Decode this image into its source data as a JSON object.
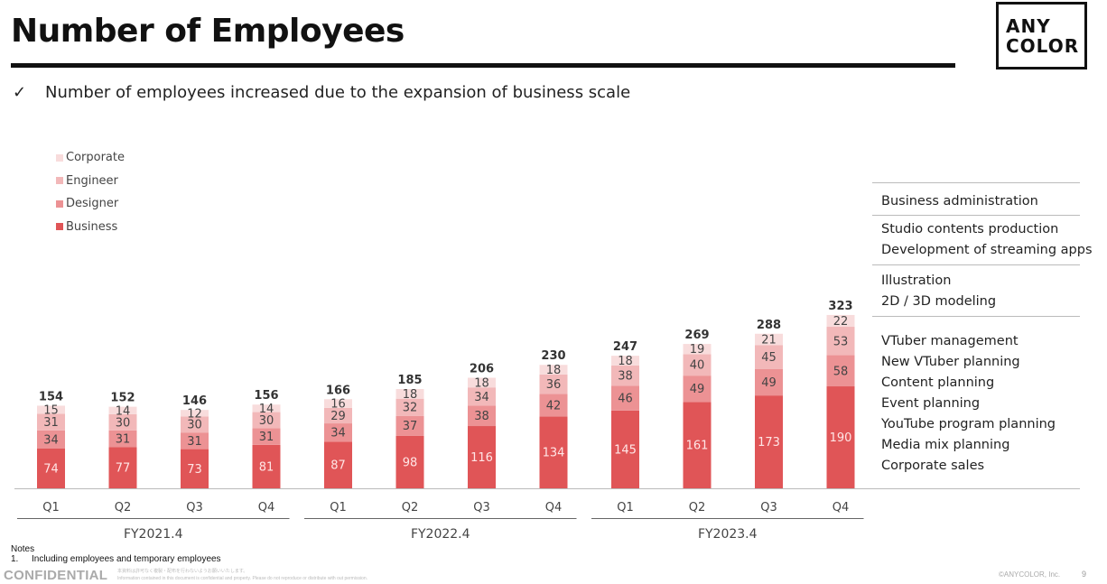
{
  "header": {
    "title": "Number of Employees",
    "logo_line1": "ANY",
    "logo_line2": "COLOR"
  },
  "subtitle": {
    "check": "✓",
    "text": "Number of employees increased due to the expansion of business scale"
  },
  "chart_data": {
    "type": "stacked-bar",
    "categories": [
      "Q1",
      "Q2",
      "Q3",
      "Q4",
      "Q1",
      "Q2",
      "Q3",
      "Q4",
      "Q1",
      "Q2",
      "Q3",
      "Q4"
    ],
    "groups": [
      {
        "label": "FY2021.4",
        "count": 4
      },
      {
        "label": "FY2022.4",
        "count": 4
      },
      {
        "label": "FY2023.4",
        "count": 4
      }
    ],
    "series": [
      {
        "name": "Business",
        "color": "#e05557",
        "values": [
          74,
          77,
          73,
          81,
          87,
          98,
          116,
          134,
          145,
          161,
          173,
          190
        ]
      },
      {
        "name": "Designer",
        "color": "#ec9294",
        "values": [
          34,
          31,
          31,
          31,
          34,
          37,
          38,
          42,
          46,
          49,
          49,
          58
        ]
      },
      {
        "name": "Engineer",
        "color": "#f2b8b9",
        "values": [
          31,
          30,
          30,
          30,
          29,
          32,
          34,
          36,
          38,
          40,
          45,
          53
        ]
      },
      {
        "name": "Corporate",
        "color": "#f8dcdc",
        "values": [
          15,
          14,
          12,
          14,
          16,
          18,
          18,
          18,
          18,
          19,
          21,
          22
        ]
      }
    ],
    "totals": [
      154,
      152,
      146,
      156,
      166,
      185,
      206,
      230,
      247,
      269,
      288,
      323
    ],
    "legend_order": [
      "Corporate",
      "Engineer",
      "Designer",
      "Business"
    ],
    "legend_position": "top-left"
  },
  "descriptions": {
    "corporate": [
      "Business administration"
    ],
    "engineer": [
      "Studio contents production",
      "Development of streaming apps"
    ],
    "designer": [
      "Illustration",
      "2D / 3D modeling"
    ],
    "business": [
      "VTuber management",
      "New VTuber planning",
      "Content planning",
      "Event planning",
      "YouTube program planning",
      "Media mix planning",
      "Corporate sales"
    ]
  },
  "notes": {
    "heading": "Notes",
    "number": "1.",
    "text": "Including employees and temporary employees"
  },
  "footer": {
    "confidential": "CONFIDENTIAL",
    "fine_line1": "本資料は許可なく複製・配布を行わないようお願いいたします。",
    "fine_line2": "Information contained in this document is confidential and property. Please do not reproduce or distribute with out permission.",
    "copyright": "©ANYCOLOR, Inc.",
    "page": "9"
  }
}
